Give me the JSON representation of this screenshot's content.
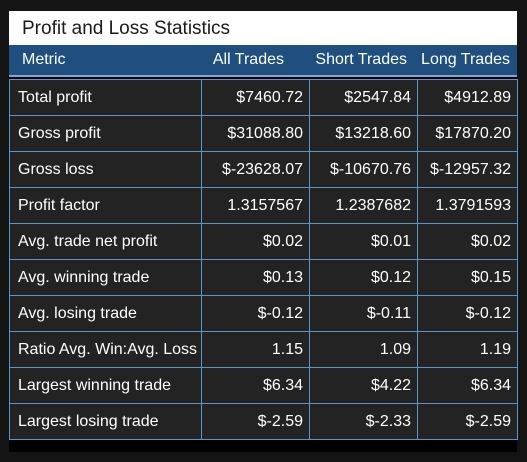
{
  "panel": {
    "title": "Profit and Loss Statistics"
  },
  "columns": {
    "metric": "Metric",
    "all": "All Trades",
    "short": "Short Trades",
    "long": "Long Trades"
  },
  "rows": [
    {
      "metric": "Total profit",
      "all": "$7460.72",
      "short": "$2547.84",
      "long": "$4912.89"
    },
    {
      "metric": "Gross profit",
      "all": "$31088.80",
      "short": "$13218.60",
      "long": "$17870.20"
    },
    {
      "metric": "Gross loss",
      "all": "$-23628.07",
      "short": "$-10670.76",
      "long": "$-12957.32"
    },
    {
      "metric": "Profit factor",
      "all": "1.3157567",
      "short": "1.2387682",
      "long": "1.3791593"
    },
    {
      "metric": "Avg. trade net profit",
      "all": "$0.02",
      "short": "$0.01",
      "long": "$0.02"
    },
    {
      "metric": "Avg. winning trade",
      "all": "$0.13",
      "short": "$0.12",
      "long": "$0.15"
    },
    {
      "metric": "Avg. losing trade",
      "all": "$-0.12",
      "short": "$-0.11",
      "long": "$-0.12"
    },
    {
      "metric": "Ratio Avg. Win:Avg. Loss",
      "all": "1.15",
      "short": "1.09",
      "long": "1.19"
    },
    {
      "metric": "Largest winning trade",
      "all": "$6.34",
      "short": "$4.22",
      "long": "$6.34"
    },
    {
      "metric": "Largest losing trade",
      "all": "$-2.59",
      "short": "$-2.33",
      "long": "$-2.59"
    }
  ],
  "colors": {
    "header_background": "#1e4f7e",
    "cell_background": "#232323",
    "grid_line": "#5e94c9",
    "title_background": "#ffffff"
  }
}
